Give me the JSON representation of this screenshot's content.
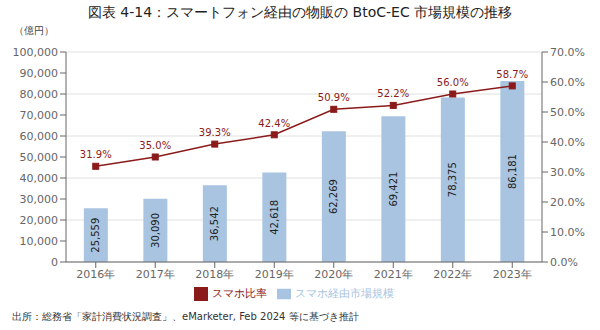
{
  "chart_data": {
    "type": "bar",
    "title": "図表 4-14：スマートフォン経由の物販の BtoC-EC 市場規模の推移",
    "categories": [
      "2016年",
      "2017年",
      "2018年",
      "2019年",
      "2020年",
      "2021年",
      "2022年",
      "2023年"
    ],
    "series": [
      {
        "name": "スマホ経由市場規模",
        "type": "bar",
        "color": "#a8c4e0",
        "values": [
          25559,
          30090,
          36542,
          42618,
          62269,
          69421,
          78375,
          86181
        ],
        "value_labels": [
          "25,559",
          "30,090",
          "36,542",
          "42,618",
          "62,269",
          "69,421",
          "78,375",
          "86,181"
        ]
      },
      {
        "name": "スマホ比率",
        "type": "line",
        "axis": "y2",
        "color": "#8b1a1a",
        "marker": "square",
        "values": [
          31.9,
          35.0,
          39.3,
          42.4,
          50.9,
          52.2,
          56.0,
          58.7
        ],
        "value_labels": [
          "31.9%",
          "35.0%",
          "39.3%",
          "42.4%",
          "50.9%",
          "52.2%",
          "56.0%",
          "58.7%"
        ]
      }
    ],
    "ylabel": "（億円）",
    "ylim": [
      0,
      100000
    ],
    "yticks": [
      0,
      {
        "value": 10000,
        "label": "10,000"
      },
      {
        "value": 20000,
        "label": "20,000"
      },
      {
        "value": 30000,
        "label": "30,000"
      },
      {
        "value": 40000,
        "label": "40,000"
      },
      {
        "value": 50000,
        "label": "50,000"
      },
      {
        "value": 60000,
        "label": "60,000"
      },
      {
        "value": 70000,
        "label": "70,000"
      },
      {
        "value": 80000,
        "label": "80,000"
      },
      {
        "value": 90000,
        "label": "90,000"
      },
      {
        "value": 100000,
        "label": "100,000"
      }
    ],
    "y2lim": [
      0,
      70
    ],
    "y2ticks": [
      {
        "value": 0,
        "label": "0.0%"
      },
      {
        "value": 10,
        "label": "10.0%"
      },
      {
        "value": 20,
        "label": "20.0%"
      },
      {
        "value": 30,
        "label": "30.0%"
      },
      {
        "value": 40,
        "label": "40.0%"
      },
      {
        "value": 50,
        "label": "50.0%"
      },
      {
        "value": 60,
        "label": "60.0%"
      },
      {
        "value": 70,
        "label": "70.0%"
      }
    ],
    "grid": true,
    "legend": "bottom",
    "data_labels": true,
    "annotations": [
      "出所：総務省「家計消費状況調査」、eMarketer, Feb 2024 等に基づき推計"
    ]
  }
}
